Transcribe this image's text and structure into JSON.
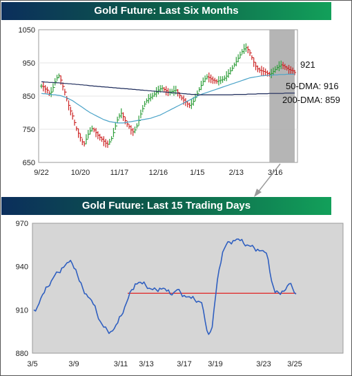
{
  "chart_data": [
    {
      "type": "line",
      "title": "Gold Future: Last Six Months",
      "ylim": [
        650,
        1050
      ],
      "yticks": [
        650,
        750,
        850,
        950,
        1050
      ],
      "xtick_labels": [
        "9/22",
        "10/20",
        "11/17",
        "12/16",
        "1/15",
        "2/13",
        "3/16"
      ],
      "highlight_region": {
        "start_index": 117,
        "end_index": 130
      },
      "annotations": [
        {
          "text": "921",
          "value": 921
        },
        {
          "text": "50-DMA: 916",
          "value": 916
        },
        {
          "text": "200-DMA: 859",
          "value": 859
        }
      ],
      "series": [
        {
          "name": "",
          "kind": "high-low bars",
          "values": [
            880,
            878,
            871,
            868,
            858,
            862,
            876,
            893,
            905,
            911,
            898,
            879,
            862,
            842,
            822,
            805,
            790,
            770,
            752,
            738,
            725,
            712,
            706,
            720,
            735,
            745,
            752,
            748,
            740,
            732,
            726,
            720,
            714,
            708,
            705,
            712,
            722,
            740,
            760,
            778,
            790,
            798,
            788,
            776,
            766,
            758,
            748,
            742,
            748,
            760,
            776,
            796,
            812,
            826,
            836,
            842,
            846,
            850,
            856,
            862,
            868,
            872,
            874,
            870,
            866,
            862,
            862,
            864,
            866,
            868,
            860,
            852,
            844,
            838,
            832,
            826,
            822,
            826,
            834,
            846,
            858,
            870,
            882,
            894,
            902,
            908,
            906,
            902,
            898,
            896,
            894,
            896,
            898,
            900,
            904,
            910,
            918,
            926,
            934,
            944,
            954,
            964,
            974,
            984,
            992,
            996,
            990,
            980,
            966,
            952,
            940,
            932,
            928,
            926,
            924,
            922,
            918,
            916,
            918,
            924,
            930,
            936,
            940,
            944,
            942,
            938,
            934,
            930,
            928,
            926,
            921
          ]
        },
        {
          "name": "50-DMA",
          "color": "#4aa3c8",
          "values": [
            858,
            857,
            857,
            856,
            855,
            855,
            854,
            854,
            853,
            852,
            851,
            849,
            847,
            845,
            842,
            839,
            836,
            832,
            828,
            824,
            820,
            816,
            812,
            808,
            804,
            800,
            797,
            794,
            791,
            788,
            785,
            782,
            779,
            777,
            775,
            773,
            772,
            771,
            770,
            769,
            769,
            769,
            769,
            770,
            771,
            772,
            773,
            774,
            775,
            776,
            777,
            778,
            779,
            780,
            781,
            782,
            783,
            785,
            787,
            789,
            791,
            793,
            796,
            799,
            802,
            805,
            808,
            811,
            814,
            817,
            820,
            823,
            826,
            829,
            832,
            835,
            838,
            841,
            844,
            847,
            850,
            853,
            855,
            857,
            859,
            861,
            863,
            865,
            867,
            869,
            871,
            873,
            875,
            877,
            879,
            881,
            883,
            885,
            887,
            889,
            891,
            893,
            895,
            897,
            899,
            901,
            903,
            905,
            906,
            907,
            908,
            909,
            910,
            911,
            911,
            912,
            912,
            913,
            913,
            914,
            914,
            914,
            915,
            915,
            915,
            915,
            916,
            916,
            916,
            916,
            916
          ]
        },
        {
          "name": "200-DMA",
          "color": "#1c2a5a",
          "values": [
            893,
            893,
            892,
            892,
            891,
            891,
            891,
            890,
            890,
            890,
            889,
            889,
            888,
            888,
            887,
            887,
            886,
            886,
            885,
            885,
            884,
            884,
            883,
            883,
            882,
            881,
            881,
            880,
            880,
            879,
            879,
            878,
            878,
            877,
            877,
            876,
            876,
            875,
            875,
            874,
            874,
            873,
            873,
            872,
            872,
            871,
            871,
            870,
            870,
            869,
            869,
            868,
            868,
            867,
            867,
            866,
            866,
            865,
            865,
            864,
            864,
            863,
            863,
            862,
            862,
            861,
            861,
            860,
            860,
            859,
            859,
            858,
            858,
            857,
            857,
            856,
            856,
            855,
            855,
            855,
            854,
            854,
            854,
            854,
            854,
            854,
            854,
            854,
            854,
            854,
            854,
            854,
            854,
            854,
            854,
            854,
            854,
            854,
            854,
            855,
            855,
            855,
            855,
            855,
            855,
            855,
            856,
            856,
            856,
            856,
            856,
            857,
            857,
            857,
            857,
            857,
            857,
            858,
            858,
            858,
            858,
            858,
            858,
            858,
            858,
            859,
            859,
            859,
            859,
            859,
            859
          ]
        }
      ]
    },
    {
      "type": "line",
      "title": "Gold Future: Last 15 Trading Days",
      "ylim": [
        880,
        970
      ],
      "yticks": [
        880,
        910,
        940,
        970
      ],
      "xtick_labels": [
        "3/5",
        "3/9",
        "3/11",
        "3/13",
        "3/17",
        "3/19",
        "3/23",
        "3/25"
      ],
      "series": [
        {
          "name": "",
          "color": "#2f5fc0",
          "values": [
            910,
            912,
            918,
            922,
            926,
            930,
            934,
            936,
            939,
            941,
            943,
            942,
            938,
            930,
            925,
            921,
            918,
            914,
            908,
            902,
            898,
            896,
            895,
            897,
            901,
            906,
            912,
            918,
            924,
            928,
            929,
            928,
            927,
            925,
            924,
            924,
            925,
            925,
            923,
            921,
            922,
            924,
            922,
            920,
            919,
            918,
            917,
            916,
            915,
            902,
            893,
            898,
            920,
            938,
            950,
            955,
            957,
            958,
            959,
            958,
            956,
            955,
            954,
            953,
            952,
            951,
            950,
            945,
            930,
            922,
            922,
            923,
            924,
            928,
            925,
            921
          ]
        },
        {
          "name": "",
          "color": "#e03030",
          "values": [
            921.5,
            921.5
          ]
        }
      ]
    }
  ]
}
